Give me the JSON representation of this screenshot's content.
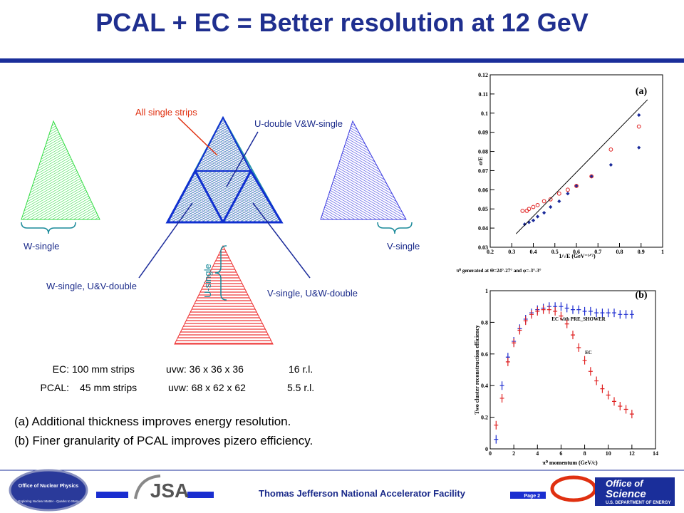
{
  "title": "PCAL + EC = Better resolution at 12 GeV",
  "diagram": {
    "labels": [
      "All single strips",
      "U-double V&W-single",
      "W-single",
      "V-single",
      "U-single",
      "W-single, U&V-double",
      "V-single, U&W-double"
    ]
  },
  "specs": [
    [
      "EC:",
      "100 mm strips",
      "uvw: 36 x 36 x 36",
      "16 r.l."
    ],
    [
      "PCAL:",
      "45 mm strips",
      "uvw: 68 x 62 x 62",
      "5.5 r.l."
    ]
  ],
  "notes": [
    "(a) Additional thickness improves energy resolution.",
    "(b) Finer granularity of PCAL improves pizero efficiency."
  ],
  "footer": {
    "facility": "Thomas Jefferson National Accelerator Facility",
    "page": "Page 2",
    "logo_left": [
      "Office of Nuclear Physics",
      "Exploring Nuclear Matter - Quarks to Stars"
    ],
    "logo_mid": "JSA",
    "logo_right": [
      "Office of",
      "Science",
      "U.S. DEPARTMENT OF ENERGY"
    ]
  },
  "chart_data": [
    {
      "type": "scatter",
      "xlabel": "1/√E (GeV⁻¹ᐟ²)",
      "ylabel": "σ/E",
      "annotations": [
        "(a)",
        "π⁰ generated at Θ=24°-27° and φ=-3°-3°"
      ],
      "xlim": [
        0.2,
        1
      ],
      "xticks": [
        0.2,
        0.3,
        0.4,
        0.5,
        0.6,
        0.7,
        0.8,
        0.9,
        1
      ],
      "ylim": [
        0.03,
        0.12
      ],
      "yticks": [
        0.03,
        0.04,
        0.05,
        0.06,
        0.07,
        0.08,
        0.09,
        0.1,
        0.11,
        0.12
      ],
      "series": [
        {
          "color": "#1a2a9a",
          "marker": "filled",
          "x": [
            0.36,
            0.38,
            0.4,
            0.42,
            0.45,
            0.48,
            0.52,
            0.56,
            0.6,
            0.67,
            0.76,
            0.89
          ],
          "values": [
            0.042,
            0.043,
            0.044,
            0.046,
            0.048,
            0.051,
            0.054,
            0.058,
            0.062,
            0.067,
            0.073,
            0.082
          ]
        },
        {
          "color": "#e02020",
          "marker": "open",
          "x": [
            0.35,
            0.37,
            0.38,
            0.4,
            0.42,
            0.45,
            0.48,
            0.52,
            0.56,
            0.6,
            0.67,
            0.76,
            0.89
          ],
          "values": [
            0.049,
            0.049,
            0.05,
            0.051,
            0.052,
            0.054,
            0.055,
            0.058,
            0.06,
            0.062,
            0.067,
            0.081,
            0.093
          ]
        },
        {
          "color": "#1a2a9a",
          "marker": "filled",
          "x": [
            0.89
          ],
          "values": [
            0.099
          ]
        },
        {
          "color": "#000000",
          "marker": "line",
          "x": [
            0.32,
            0.93
          ],
          "values": [
            0.037,
            0.107
          ]
        }
      ]
    },
    {
      "type": "scatter",
      "xlabel": "π⁰ momentum (GeV/c)",
      "ylabel": "Two cluster reconstruction efficiency",
      "annotations": [
        "(b)",
        "EC with PRE_SHOWER",
        "EC"
      ],
      "xlim": [
        0,
        14
      ],
      "xticks": [
        0,
        2,
        4,
        6,
        8,
        10,
        12,
        14
      ],
      "ylim": [
        0,
        1
      ],
      "yticks": [
        0,
        0.2,
        0.4,
        0.6,
        0.8,
        1
      ],
      "x": [
        0.5,
        1,
        1.5,
        2,
        2.5,
        3,
        3.5,
        4,
        4.5,
        5,
        5.5,
        6,
        6.5,
        7,
        7.5,
        8,
        8.5,
        9,
        9.5,
        10,
        10.5,
        11,
        11.5,
        12
      ],
      "series": [
        {
          "color": "#1a2ad0",
          "marker": "cross",
          "values": [
            0.06,
            0.4,
            0.58,
            0.68,
            0.76,
            0.82,
            0.86,
            0.88,
            0.89,
            0.9,
            0.9,
            0.9,
            0.89,
            0.88,
            0.88,
            0.87,
            0.87,
            0.86,
            0.86,
            0.86,
            0.86,
            0.85,
            0.85,
            0.85
          ]
        },
        {
          "color": "#e02020",
          "marker": "cross",
          "values": [
            0.15,
            0.32,
            0.55,
            0.67,
            0.75,
            0.81,
            0.85,
            0.87,
            0.88,
            0.88,
            0.87,
            0.84,
            0.79,
            0.72,
            0.64,
            0.56,
            0.49,
            0.43,
            0.38,
            0.34,
            0.3,
            0.27,
            0.25,
            0.22
          ]
        }
      ]
    }
  ]
}
